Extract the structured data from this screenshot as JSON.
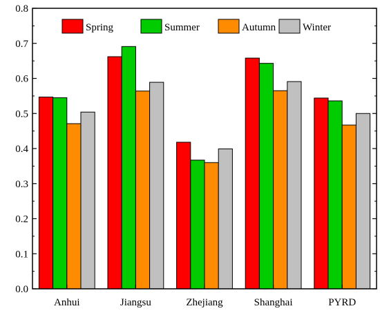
{
  "chart_data": {
    "type": "bar",
    "title": "",
    "xlabel": "",
    "ylabel": "",
    "ylim": [
      0,
      0.8
    ],
    "yticks": [
      "0.0",
      "0.1",
      "0.2",
      "0.3",
      "0.4",
      "0.5",
      "0.6",
      "0.7",
      "0.8"
    ],
    "categories": [
      "Anhui",
      "Jiangsu",
      "Zhejiang",
      "Shanghai",
      "PYRD"
    ],
    "legend_position": "top-right",
    "grid": false,
    "series": [
      {
        "name": "Spring",
        "color": "#ff0000",
        "values": [
          0.547,
          0.662,
          0.418,
          0.658,
          0.544
        ]
      },
      {
        "name": "Summer",
        "color": "#00cc00",
        "values": [
          0.545,
          0.691,
          0.367,
          0.643,
          0.536
        ]
      },
      {
        "name": "Autumn",
        "color": "#ff8c00",
        "values": [
          0.471,
          0.564,
          0.36,
          0.565,
          0.467
        ]
      },
      {
        "name": "Winter",
        "color": "#c0c0c0",
        "values": [
          0.504,
          0.589,
          0.399,
          0.591,
          0.5
        ]
      }
    ]
  }
}
